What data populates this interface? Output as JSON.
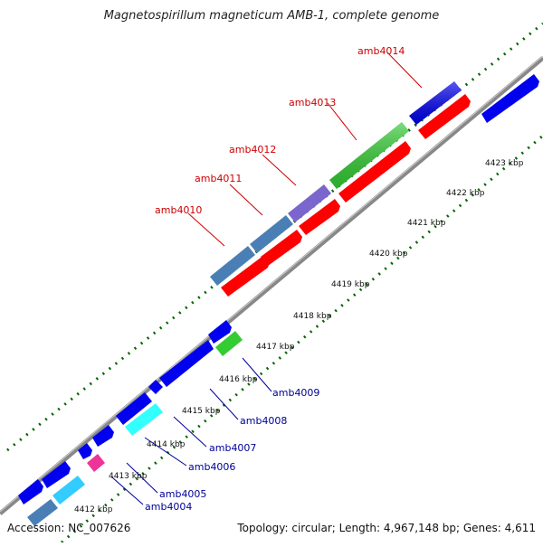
{
  "title": "Magnetospirillum magneticum AMB-1, complete genome",
  "footer": {
    "accession": "Accession: NC_007626",
    "summary": "Topology: circular; Length: 4,967,148 bp; Genes: 4,611"
  },
  "colors": {
    "label_top": "#cc0000",
    "label_bottom": "#000099",
    "tick": "#006600",
    "backbone": "#888888"
  },
  "scale_labels": [
    "4412 kbp",
    "4413 kbp",
    "4414 kbp",
    "4415 kbp",
    "4416 kbp",
    "4417 kbp",
    "4418 kbp",
    "4419 kbp",
    "4420 kbp",
    "4421 kbp",
    "4422 kbp",
    "4423 kbp"
  ],
  "genes_upper": [
    {
      "label": "amb4010",
      "color": "#4a7fb5"
    },
    {
      "label": "amb4011",
      "color": "#4a7fb5"
    },
    {
      "label": "amb4012",
      "color": "#7a66cc"
    },
    {
      "label": "amb4013",
      "color": "#33cc33"
    },
    {
      "label": "amb4014",
      "color": "#0000ee"
    }
  ],
  "genes_lower": [
    {
      "label": "amb4004",
      "color": "#33ccff"
    },
    {
      "label": "amb4005",
      "color": "#ee3399"
    },
    {
      "label": "amb4006",
      "color": "#33ffff"
    },
    {
      "label": "amb4007",
      "color": "#0000ee"
    },
    {
      "label": "amb4008",
      "color": "#0000ee"
    },
    {
      "label": "amb4009",
      "color": "#33cc33"
    }
  ]
}
